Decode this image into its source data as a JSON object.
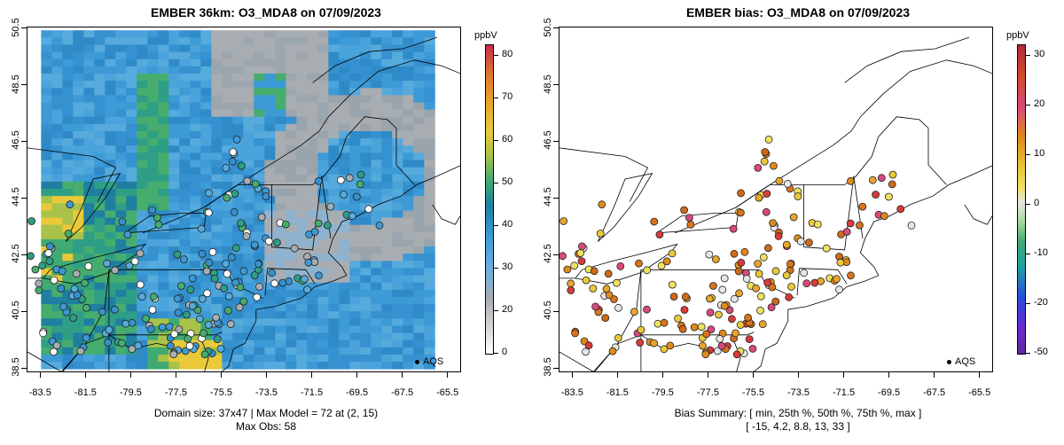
{
  "left_panel": {
    "title": "EMBER 36km: O3_MDA8 on 07/09/2023",
    "colorbar_unit": "ppbV",
    "colorbar_ticks": [
      "80",
      "70",
      "60",
      "50",
      "40",
      "30",
      "20",
      "0"
    ],
    "footer_line1": "Domain size: 37x47 | Max Model = 72 at (2, 15)",
    "footer_line2": "Max Obs: 58",
    "legend_label": "AQS"
  },
  "right_panel": {
    "title": "EMBER bias: O3_MDA8 on 07/09/2023",
    "colorbar_unit": "ppbV",
    "colorbar_ticks": [
      "30",
      "20",
      "10",
      "0",
      "-10",
      "-20",
      "-50"
    ],
    "footer_line1": "Bias Summary: [ min, 25th %, 50th %, 75th %, max ]",
    "footer_line2": "[ -15,   4.2,   8.8,   13,   33 ]",
    "legend_label": "AQS"
  },
  "axes": {
    "x_ticks": [
      "-83.5",
      "-81.5",
      "-79.5",
      "-77.5",
      "-75.5",
      "-73.5",
      "-71.5",
      "-69.5",
      "-67.5",
      "-65.5"
    ],
    "y_ticks": [
      "50.5",
      "48.5",
      "46.5",
      "44.5",
      "42.5",
      "40.5",
      "38.5"
    ],
    "x_range": [
      -84.1,
      -64.9
    ],
    "y_range": [
      38.35,
      50.55
    ]
  },
  "colors": {
    "ocean_blue": "#3c9ad6",
    "grey": "#a8adb2",
    "green": "#3faa72",
    "yellow": "#e9c93a",
    "orange": "#e08a1c",
    "red": "#d83a3a"
  }
}
